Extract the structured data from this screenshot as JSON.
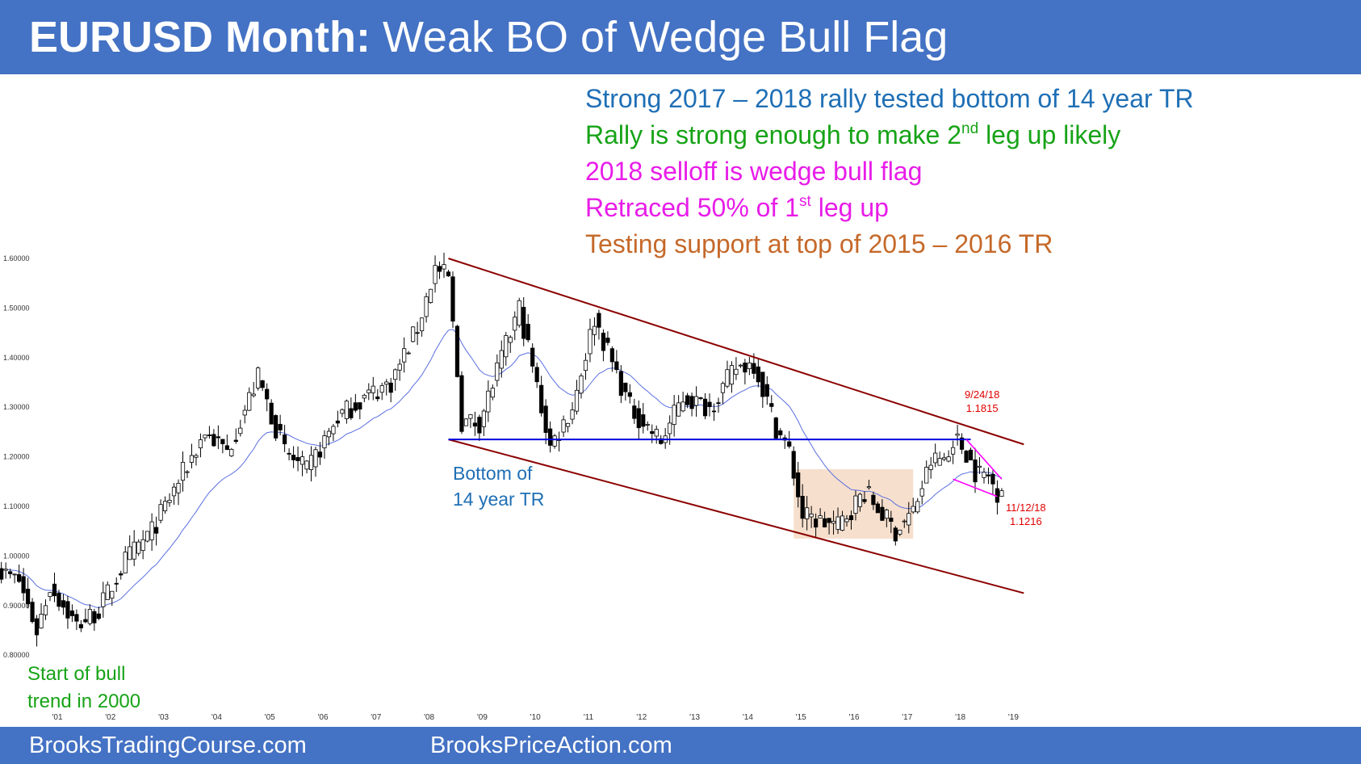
{
  "header": {
    "title_bold": "EURUSD Month:",
    "title_rest": " Weak BO of Wedge Bull Flag"
  },
  "notes": [
    {
      "text": "Strong 2017 – 2018 rally tested bottom of 14 year TR",
      "sup": "",
      "after": "",
      "color": "#1f6fb5"
    },
    {
      "text": "Rally is strong enough to make 2",
      "sup": "nd",
      "after": " leg up likely",
      "color": "#17a317"
    },
    {
      "text": "2018 selloff is wedge bull flag",
      "sup": "",
      "after": "",
      "color": "#e81ce8"
    },
    {
      "text": "Retraced 50% of 1",
      "sup": "st",
      "after": " leg up",
      "color": "#e81ce8"
    },
    {
      "text": "Testing support at top of 2015 – 2016 TR",
      "sup": "",
      "after": "",
      "color": "#c5692a"
    }
  ],
  "annotations": {
    "bottom_tr_line1": "Bottom of",
    "bottom_tr_line2": "14 year TR",
    "start_line1": "Start of bull",
    "start_line2": "trend in 2000",
    "high_date": "9/24/18",
    "high_value": "1.1815",
    "low_date": "11/12/18",
    "low_value": "1.1216"
  },
  "footer": {
    "left": "BrooksTradingCourse.com",
    "right": "BrooksPriceAction.com"
  },
  "colors": {
    "brand": "#4472c4",
    "channel": "#8b0000",
    "support": "#0000dd",
    "ema": "#5a6fe0",
    "wedge": "#ff00ff",
    "range_box": "#f4d9c4",
    "label_red": "#e00000"
  },
  "chart_data": {
    "type": "candlestick",
    "title": "EURUSD Month",
    "ylim": [
      0.8,
      1.6
    ],
    "y_ticks": [
      "0.80000",
      "0.90000",
      "1.00000",
      "1.10000",
      "1.20000",
      "1.30000",
      "1.40000",
      "1.50000",
      "1.60000"
    ],
    "x_ticks": [
      "'01",
      "'02",
      "'03",
      "'04",
      "'05",
      "'06",
      "'07",
      "'08",
      "'09",
      "'10",
      "'11",
      "'12",
      "'13",
      "'14",
      "'15",
      "'16",
      "'17",
      "'18",
      "'19"
    ],
    "approx_monthly_closes": [
      {
        "date": "2000-01",
        "close": 0.97
      },
      {
        "date": "2000-06",
        "close": 0.95
      },
      {
        "date": "2000-10",
        "close": 0.85
      },
      {
        "date": "2001-01",
        "close": 0.94
      },
      {
        "date": "2001-07",
        "close": 0.86
      },
      {
        "date": "2001-12",
        "close": 0.89
      },
      {
        "date": "2002-06",
        "close": 0.99
      },
      {
        "date": "2002-12",
        "close": 1.05
      },
      {
        "date": "2003-06",
        "close": 1.15
      },
      {
        "date": "2003-12",
        "close": 1.25
      },
      {
        "date": "2004-05",
        "close": 1.21
      },
      {
        "date": "2004-12",
        "close": 1.36
      },
      {
        "date": "2005-06",
        "close": 1.21
      },
      {
        "date": "2005-11",
        "close": 1.17
      },
      {
        "date": "2006-06",
        "close": 1.28
      },
      {
        "date": "2006-12",
        "close": 1.32
      },
      {
        "date": "2007-06",
        "close": 1.35
      },
      {
        "date": "2007-12",
        "close": 1.46
      },
      {
        "date": "2008-04",
        "close": 1.58
      },
      {
        "date": "2008-07",
        "close": 1.56
      },
      {
        "date": "2008-10",
        "close": 1.27
      },
      {
        "date": "2009-02",
        "close": 1.27
      },
      {
        "date": "2009-11",
        "close": 1.5
      },
      {
        "date": "2010-06",
        "close": 1.22
      },
      {
        "date": "2010-11",
        "close": 1.3
      },
      {
        "date": "2011-04",
        "close": 1.48
      },
      {
        "date": "2011-12",
        "close": 1.3
      },
      {
        "date": "2012-07",
        "close": 1.23
      },
      {
        "date": "2012-12",
        "close": 1.32
      },
      {
        "date": "2013-06",
        "close": 1.3
      },
      {
        "date": "2013-12",
        "close": 1.38
      },
      {
        "date": "2014-04",
        "close": 1.39
      },
      {
        "date": "2014-09",
        "close": 1.26
      },
      {
        "date": "2014-12",
        "close": 1.21
      },
      {
        "date": "2015-03",
        "close": 1.08
      },
      {
        "date": "2015-11",
        "close": 1.06
      },
      {
        "date": "2016-05",
        "close": 1.13
      },
      {
        "date": "2016-12",
        "close": 1.05
      },
      {
        "date": "2017-04",
        "close": 1.09
      },
      {
        "date": "2017-08",
        "close": 1.19
      },
      {
        "date": "2017-12",
        "close": 1.2
      },
      {
        "date": "2018-01",
        "close": 1.24
      },
      {
        "date": "2018-04",
        "close": 1.21
      },
      {
        "date": "2018-06",
        "close": 1.17
      },
      {
        "date": "2018-09",
        "close": 1.16
      },
      {
        "date": "2018-11",
        "close": 1.13
      },
      {
        "date": "2018-12",
        "close": 1.145
      }
    ],
    "support_line": 1.235,
    "range_box": {
      "x": [
        "2015-01",
        "2017-04"
      ],
      "y": [
        1.035,
        1.175
      ]
    },
    "upper_channel": [
      {
        "date": "2008-07",
        "value": 1.6
      },
      {
        "date": "2019-05",
        "value": 1.225
      }
    ],
    "lower_channel": [
      {
        "date": "2008-07",
        "value": 1.235
      },
      {
        "date": "2019-05",
        "value": 0.925
      }
    ],
    "wedge_upper": [
      {
        "date": "2018-04",
        "value": 1.235
      },
      {
        "date": "2018-12",
        "value": 1.155
      }
    ],
    "wedge_lower": [
      {
        "date": "2018-01",
        "value": 1.155
      },
      {
        "date": "2018-11",
        "value": 1.12
      }
    ]
  }
}
